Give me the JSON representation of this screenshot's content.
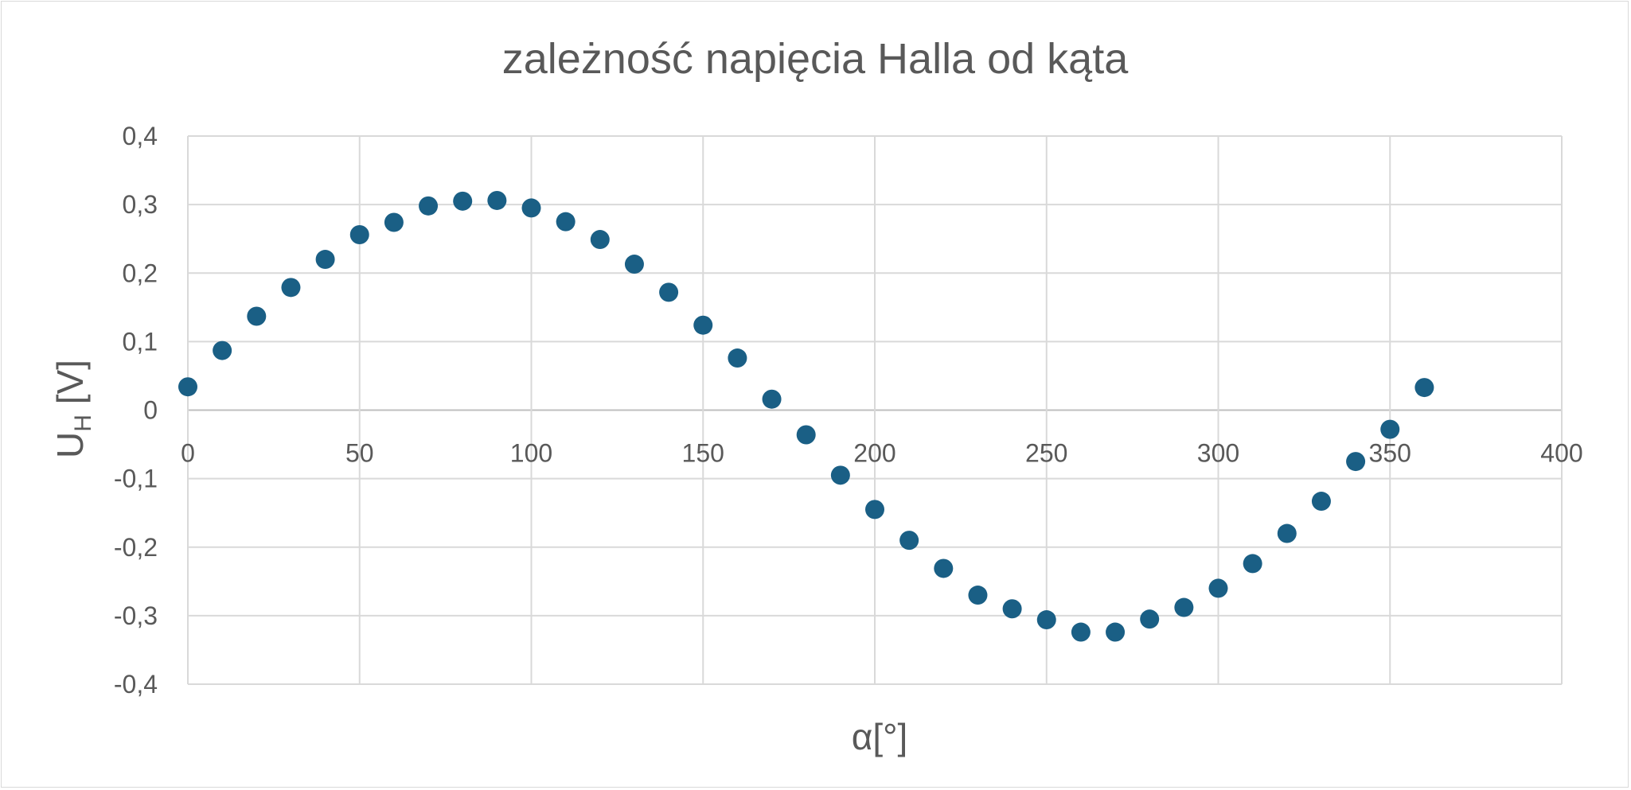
{
  "chart_data": {
    "type": "scatter",
    "title": "zależność napięcia Halla od kąta",
    "xlabel": "α[°]",
    "ylabel": {
      "main": "U",
      "subscript": "H",
      "unit": " [V]"
    },
    "xlim": [
      0,
      400
    ],
    "ylim": [
      -0.4,
      0.4
    ],
    "x_ticks": [
      0,
      50,
      100,
      150,
      200,
      250,
      300,
      350,
      400
    ],
    "x_tick_labels": [
      "0",
      "50",
      "100",
      "150",
      "200",
      "250",
      "300",
      "350",
      "400"
    ],
    "y_ticks": [
      0.4,
      0.3,
      0.2,
      0.1,
      0,
      -0.1,
      -0.2,
      -0.3,
      -0.4
    ],
    "y_tick_labels": [
      "0,4",
      "0,3",
      "0,2",
      "0,1",
      "0",
      "-0,1",
      "-0,2",
      "-0,3",
      "-0,4"
    ],
    "grid": true,
    "marker_color": "#1a5f85",
    "series": [
      {
        "x": [
          0,
          10,
          20,
          30,
          40,
          50,
          60,
          70,
          80,
          90,
          100,
          110,
          120,
          130,
          140,
          150,
          160,
          170,
          180,
          190,
          200,
          210,
          220,
          230,
          240,
          250,
          260,
          270,
          280,
          290,
          300,
          310,
          320,
          330,
          340,
          350,
          360
        ],
        "y": [
          0.034,
          0.087,
          0.137,
          0.179,
          0.22,
          0.256,
          0.274,
          0.298,
          0.305,
          0.306,
          0.295,
          0.275,
          0.249,
          0.213,
          0.172,
          0.124,
          0.076,
          0.016,
          -0.036,
          -0.095,
          -0.145,
          -0.19,
          -0.231,
          -0.27,
          -0.29,
          -0.306,
          -0.324,
          -0.324,
          -0.305,
          -0.288,
          -0.26,
          -0.224,
          -0.18,
          -0.133,
          -0.075,
          -0.028,
          0.033
        ]
      }
    ]
  }
}
